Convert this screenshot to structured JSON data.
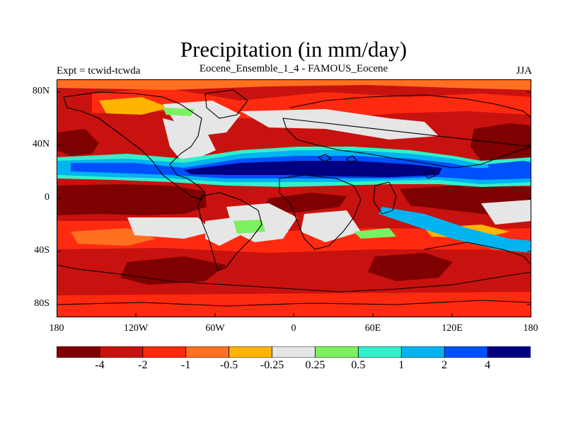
{
  "title": "Precipitation (in mm/day)",
  "left_header": "Expt = tcwid-tcwda",
  "center_header": "Eocene_Ensemble_1_4 - FAMOUS_Eocene",
  "right_header": "JJA",
  "y_ticks": [
    "80N",
    "40N",
    "0",
    "40S",
    "80S"
  ],
  "x_ticks": [
    "180",
    "120W",
    "60W",
    "0",
    "60E",
    "120E",
    "180"
  ],
  "colorbar": {
    "colors": [
      "#7f0000",
      "#c8120f",
      "#ff2a10",
      "#ff7020",
      "#ffb400",
      "#e6e6e6",
      "#7cf060",
      "#33f0c8",
      "#00b4f0",
      "#0050ff",
      "#000080"
    ],
    "labels": [
      "-4",
      "-2",
      "-1",
      "-0.5",
      "-0.25",
      "0.25",
      "0.5",
      "1",
      "2",
      "4"
    ]
  }
}
